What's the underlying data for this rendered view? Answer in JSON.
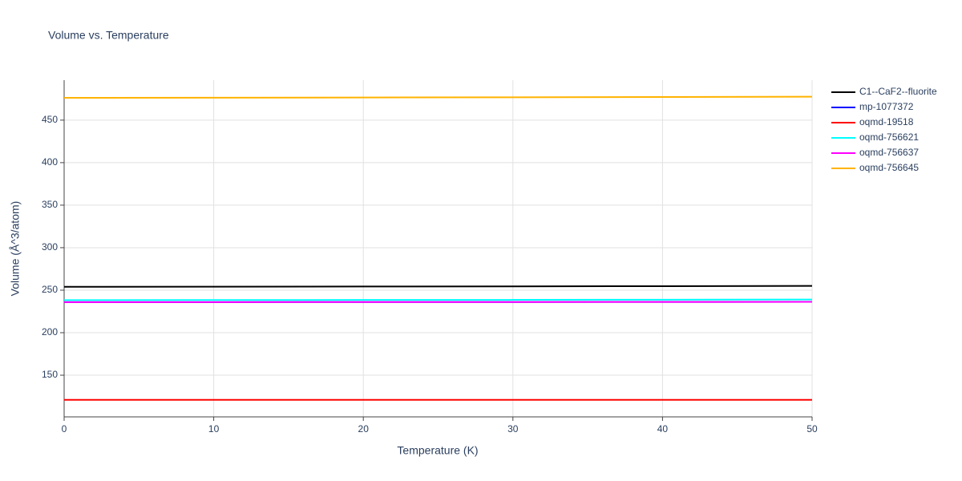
{
  "chart_data": {
    "type": "line",
    "title": "Volume vs. Temperature",
    "x_label": "Temperature (K)",
    "y_label": "Volume (Å^3/atom)",
    "x": [
      0,
      10,
      20,
      30,
      40,
      50
    ],
    "series": [
      {
        "name": "C1--CaF2--fluorite",
        "color": "#000000",
        "values": [
          254.0,
          254.1,
          254.3,
          254.5,
          254.7,
          255.0
        ]
      },
      {
        "name": "mp-1077372",
        "color": "#0000ff",
        "values": [
          236.0,
          236.0,
          236.1,
          236.1,
          236.2,
          236.3
        ]
      },
      {
        "name": "oqmd-19518",
        "color": "#ff0000",
        "values": [
          121.0,
          121.0,
          121.0,
          121.0,
          121.0,
          121.0
        ]
      },
      {
        "name": "oqmd-756621",
        "color": "#00ffff",
        "values": [
          238.3,
          238.4,
          238.5,
          238.6,
          238.8,
          239.0
        ]
      },
      {
        "name": "oqmd-756637",
        "color": "#ff00ff",
        "values": [
          236.0,
          236.0,
          236.1,
          236.1,
          236.2,
          236.3
        ]
      },
      {
        "name": "oqmd-756645",
        "color": "#ffb300",
        "values": [
          476.2,
          476.4,
          476.6,
          476.9,
          477.2,
          477.5
        ]
      }
    ],
    "xlim": [
      0,
      50
    ],
    "xticks": [
      0,
      10,
      20,
      30,
      40,
      50
    ],
    "ylim": [
      101,
      497
    ],
    "yticks": [
      150,
      200,
      250,
      300,
      350,
      400,
      450
    ],
    "grid": true,
    "legend": "right"
  }
}
